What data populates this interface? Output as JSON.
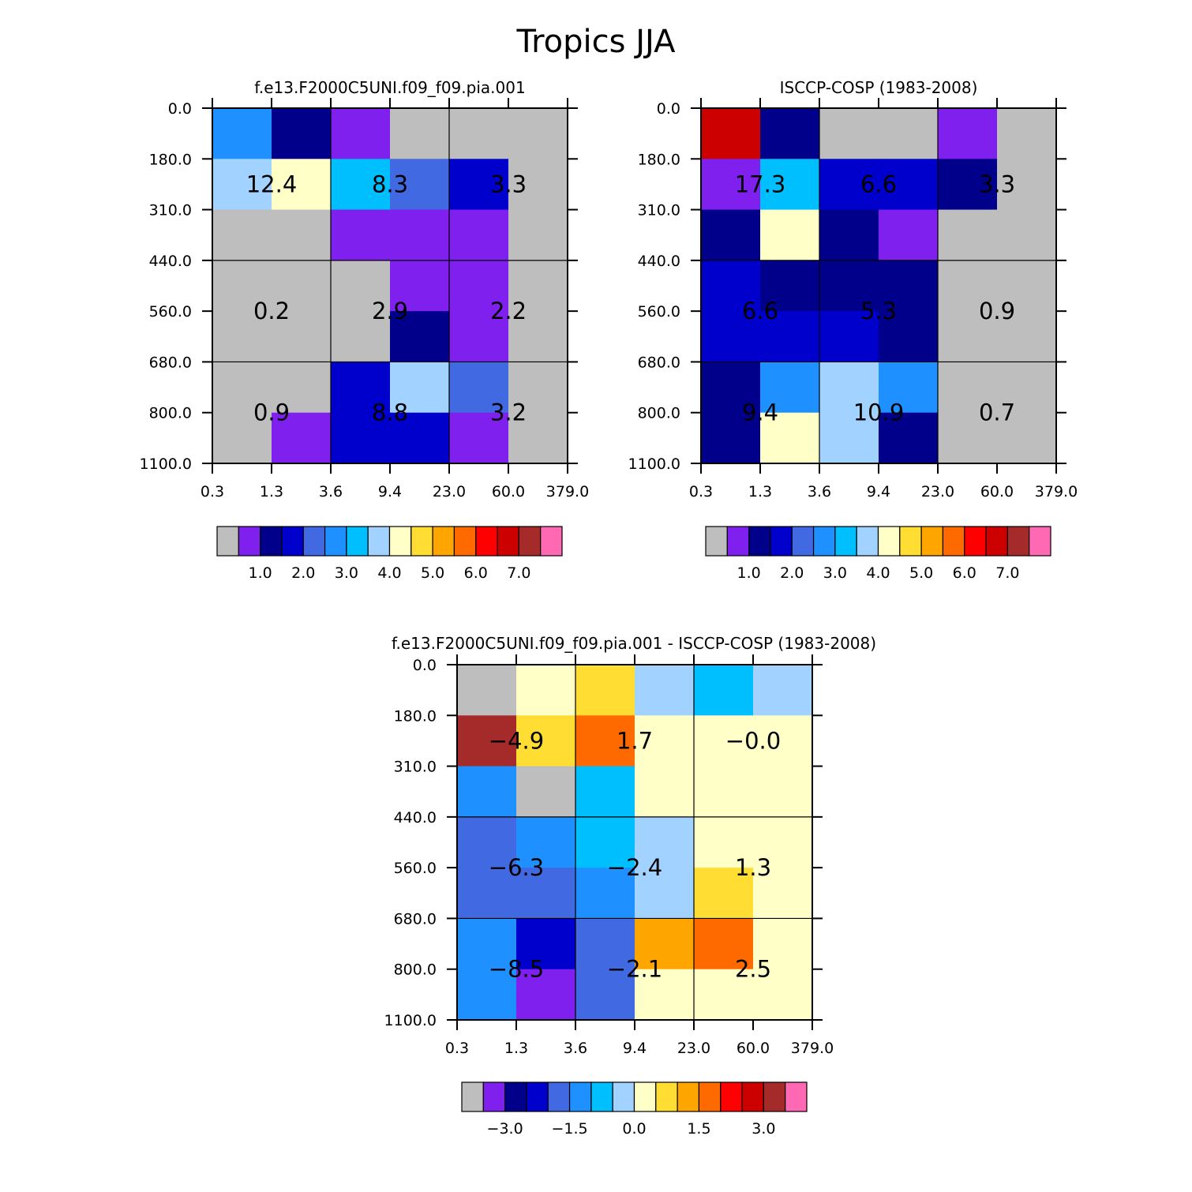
{
  "figure": {
    "title": "Tropics JJA"
  },
  "palette": {
    "gray": "#bebebe",
    "purple": "#7f20ee",
    "navy": "#00008b",
    "blue": "#0000cd",
    "royal": "#4169e1",
    "dodger": "#1e90ff",
    "sky": "#00bfff",
    "lightsky": "#a2d2ff",
    "cream": "#ffffc8",
    "yellow": "#ffdd33",
    "orange": "#ffa500",
    "darkorange": "#ff6a00",
    "red": "#ff0000",
    "red3": "#cd0000",
    "brown": "#a52a2a",
    "pink": "#ff69b4"
  },
  "chart_data": [
    {
      "type": "heatmap",
      "title": "f.e13.F2000C5UNI.f09_f09.pia.001",
      "x_ticks": [
        "0.3",
        "1.3",
        "3.6",
        "9.4",
        "23.0",
        "60.0",
        "379.0"
      ],
      "y_ticks": [
        "0.0",
        "180.0",
        "310.0",
        "440.0",
        "560.0",
        "680.0",
        "800.0",
        "1100.0"
      ],
      "cells": [
        [
          "dodger",
          "navy",
          "purple",
          "gray",
          "gray",
          "gray"
        ],
        [
          "lightsky",
          "cream",
          "sky",
          "royal",
          "blue",
          "gray"
        ],
        [
          "gray",
          "gray",
          "purple",
          "purple",
          "purple",
          "gray"
        ],
        [
          "gray",
          "gray",
          "gray",
          "purple",
          "purple",
          "gray"
        ],
        [
          "gray",
          "gray",
          "gray",
          "navy",
          "purple",
          "gray"
        ],
        [
          "gray",
          "gray",
          "blue",
          "lightsky",
          "royal",
          "gray"
        ],
        [
          "gray",
          "purple",
          "blue",
          "blue",
          "purple",
          "gray"
        ]
      ],
      "group_values": [
        [
          "12.4",
          "8.3",
          "3.3"
        ],
        [
          "0.2",
          "2.9",
          "2.2"
        ],
        [
          "0.9",
          "8.8",
          "3.2"
        ]
      ],
      "colorbar": {
        "colors": [
          "gray",
          "purple",
          "navy",
          "blue",
          "royal",
          "dodger",
          "sky",
          "lightsky",
          "cream",
          "yellow",
          "orange",
          "darkorange",
          "red",
          "red3",
          "brown",
          "pink"
        ],
        "labels": [
          "1.0",
          "2.0",
          "3.0",
          "4.0",
          "5.0",
          "6.0",
          "7.0"
        ]
      }
    },
    {
      "type": "heatmap",
      "title": "ISCCP-COSP (1983-2008)",
      "x_ticks": [
        "0.3",
        "1.3",
        "3.6",
        "9.4",
        "23.0",
        "60.0",
        "379.0"
      ],
      "y_ticks": [
        "0.0",
        "180.0",
        "310.0",
        "440.0",
        "560.0",
        "680.0",
        "800.0",
        "1100.0"
      ],
      "cells": [
        [
          "red3",
          "navy",
          "gray",
          "gray",
          "purple",
          "gray"
        ],
        [
          "purple",
          "sky",
          "blue",
          "blue",
          "navy",
          "gray"
        ],
        [
          "navy",
          "cream",
          "navy",
          "purple",
          "gray",
          "gray"
        ],
        [
          "blue",
          "navy",
          "navy",
          "navy",
          "gray",
          "gray"
        ],
        [
          "blue",
          "blue",
          "blue",
          "navy",
          "gray",
          "gray"
        ],
        [
          "navy",
          "dodger",
          "lightsky",
          "dodger",
          "gray",
          "gray"
        ],
        [
          "navy",
          "cream",
          "lightsky",
          "navy",
          "gray",
          "gray"
        ]
      ],
      "group_values": [
        [
          "17.3",
          "6.6",
          "3.3"
        ],
        [
          "6.6",
          "5.3",
          "0.9"
        ],
        [
          "9.4",
          "10.9",
          "0.7"
        ]
      ],
      "colorbar": {
        "colors": [
          "gray",
          "purple",
          "navy",
          "blue",
          "royal",
          "dodger",
          "sky",
          "lightsky",
          "cream",
          "yellow",
          "orange",
          "darkorange",
          "red",
          "red3",
          "brown",
          "pink"
        ],
        "labels": [
          "1.0",
          "2.0",
          "3.0",
          "4.0",
          "5.0",
          "6.0",
          "7.0"
        ]
      }
    },
    {
      "type": "heatmap",
      "title": "f.e13.F2000C5UNI.f09_f09.pia.001 - ISCCP-COSP (1983-2008)",
      "x_ticks": [
        "0.3",
        "1.3",
        "3.6",
        "9.4",
        "23.0",
        "60.0",
        "379.0"
      ],
      "y_ticks": [
        "0.0",
        "180.0",
        "310.0",
        "440.0",
        "560.0",
        "680.0",
        "800.0",
        "1100.0"
      ],
      "cells": [
        [
          "gray",
          "cream",
          "yellow",
          "lightsky",
          "sky",
          "lightsky"
        ],
        [
          "brown",
          "yellow",
          "darkorange",
          "cream",
          "cream",
          "cream"
        ],
        [
          "dodger",
          "gray",
          "sky",
          "cream",
          "cream",
          "cream"
        ],
        [
          "royal",
          "dodger",
          "sky",
          "lightsky",
          "cream",
          "cream"
        ],
        [
          "royal",
          "royal",
          "dodger",
          "lightsky",
          "yellow",
          "cream"
        ],
        [
          "dodger",
          "blue",
          "royal",
          "orange",
          "darkorange",
          "cream"
        ],
        [
          "dodger",
          "purple",
          "royal",
          "cream",
          "cream",
          "cream"
        ]
      ],
      "group_values": [
        [
          "-4.9",
          "1.7",
          "-0.0"
        ],
        [
          "-6.3",
          "-2.4",
          "1.3"
        ],
        [
          "-8.5",
          "-2.1",
          "2.5"
        ]
      ],
      "colorbar": {
        "colors": [
          "gray",
          "purple",
          "navy",
          "blue",
          "royal",
          "dodger",
          "sky",
          "lightsky",
          "cream",
          "yellow",
          "orange",
          "darkorange",
          "red",
          "red3",
          "brown",
          "pink"
        ],
        "labels": [
          "-3.0",
          "-1.5",
          "0.0",
          "1.5",
          "3.0"
        ]
      }
    }
  ]
}
